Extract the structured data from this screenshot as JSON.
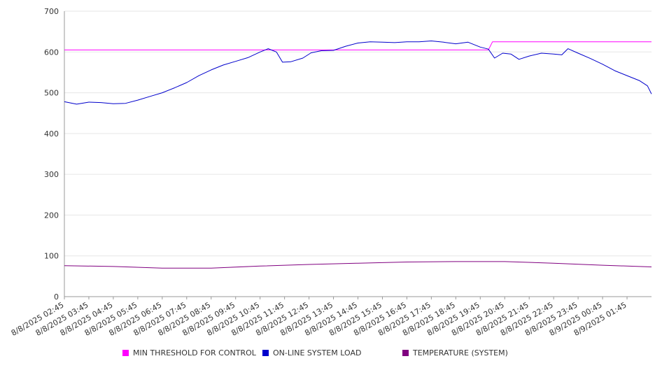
{
  "chart_data": {
    "type": "line",
    "title": "",
    "xlabel": "",
    "ylabel": "",
    "ylim": [
      0,
      700
    ],
    "yticks": [
      0,
      100,
      200,
      300,
      400,
      500,
      600,
      700
    ],
    "grid": true,
    "legend_position": "bottom",
    "x_tick_labels": [
      "8/8/2025 02:45",
      "8/8/2025 03:45",
      "8/8/2025 04:45",
      "8/8/2025 05:45",
      "8/8/2025 06:45",
      "8/8/2025 07:45",
      "8/8/2025 08:45",
      "8/8/2025 09:45",
      "8/8/2025 10:45",
      "8/8/2025 11:45",
      "8/8/2025 12:45",
      "8/8/2025 13:45",
      "8/8/2025 14:45",
      "8/8/2025 15:45",
      "8/8/2025 16:45",
      "8/8/2025 17:45",
      "8/8/2025 18:45",
      "8/8/2025 19:45",
      "8/8/2025 20:45",
      "8/8/2025 21:45",
      "8/8/2025 22:45",
      "8/8/2025 23:45",
      "8/9/2025 00:45",
      "8/9/2025 01:45"
    ],
    "x_range": [
      "8/8/2025 02:45",
      "8/9/2025 02:45"
    ],
    "series": [
      {
        "name": "MIN THRESHOLD FOR CONTROL",
        "color": "#ff00ff",
        "points": [
          [
            "8/8/2025 02:45",
            605
          ],
          [
            "8/8/2025 20:05",
            605
          ],
          [
            "8/8/2025 20:15",
            625
          ],
          [
            "8/9/2025 02:45",
            625
          ]
        ]
      },
      {
        "name": "ON-LINE SYSTEM LOAD",
        "color": "#0000cc",
        "points": [
          [
            "8/8/2025 02:45",
            478
          ],
          [
            "8/8/2025 03:15",
            472
          ],
          [
            "8/8/2025 03:45",
            477
          ],
          [
            "8/8/2025 04:15",
            476
          ],
          [
            "8/8/2025 04:45",
            473
          ],
          [
            "8/8/2025 05:15",
            474
          ],
          [
            "8/8/2025 05:45",
            482
          ],
          [
            "8/8/2025 06:15",
            491
          ],
          [
            "8/8/2025 06:45",
            500
          ],
          [
            "8/8/2025 07:15",
            512
          ],
          [
            "8/8/2025 07:45",
            525
          ],
          [
            "8/8/2025 08:15",
            542
          ],
          [
            "8/8/2025 08:45",
            556
          ],
          [
            "8/8/2025 09:15",
            568
          ],
          [
            "8/8/2025 09:45",
            577
          ],
          [
            "8/8/2025 10:15",
            586
          ],
          [
            "8/8/2025 10:45",
            600
          ],
          [
            "8/8/2025 11:05",
            608
          ],
          [
            "8/8/2025 11:25",
            600
          ],
          [
            "8/8/2025 11:40",
            575
          ],
          [
            "8/8/2025 12:00",
            576
          ],
          [
            "8/8/2025 12:30",
            585
          ],
          [
            "8/8/2025 12:50",
            598
          ],
          [
            "8/8/2025 13:15",
            603
          ],
          [
            "8/8/2025 13:45",
            604
          ],
          [
            "8/8/2025 14:15",
            614
          ],
          [
            "8/8/2025 14:45",
            622
          ],
          [
            "8/8/2025 15:15",
            625
          ],
          [
            "8/8/2025 15:45",
            624
          ],
          [
            "8/8/2025 16:15",
            623
          ],
          [
            "8/8/2025 16:45",
            625
          ],
          [
            "8/8/2025 17:15",
            625
          ],
          [
            "8/8/2025 17:45",
            627
          ],
          [
            "8/8/2025 18:15",
            624
          ],
          [
            "8/8/2025 18:45",
            620
          ],
          [
            "8/8/2025 19:15",
            624
          ],
          [
            "8/8/2025 19:45",
            612
          ],
          [
            "8/8/2025 20:05",
            607
          ],
          [
            "8/8/2025 20:20",
            585
          ],
          [
            "8/8/2025 20:40",
            597
          ],
          [
            "8/8/2025 21:00",
            595
          ],
          [
            "8/8/2025 21:20",
            582
          ],
          [
            "8/8/2025 21:45",
            590
          ],
          [
            "8/8/2025 22:15",
            597
          ],
          [
            "8/8/2025 22:45",
            595
          ],
          [
            "8/8/2025 23:05",
            593
          ],
          [
            "8/8/2025 23:20",
            608
          ],
          [
            "8/8/2025 23:45",
            597
          ],
          [
            "8/9/2025 00:15",
            584
          ],
          [
            "8/9/2025 00:45",
            570
          ],
          [
            "8/9/2025 01:15",
            554
          ],
          [
            "8/9/2025 01:45",
            542
          ],
          [
            "8/9/2025 02:15",
            530
          ],
          [
            "8/9/2025 02:35",
            517
          ],
          [
            "8/9/2025 02:45",
            497
          ]
        ]
      },
      {
        "name": "TEMPERATURE (SYSTEM)",
        "color": "#800080",
        "points": [
          [
            "8/8/2025 02:45",
            76
          ],
          [
            "8/8/2025 04:45",
            74
          ],
          [
            "8/8/2025 06:45",
            70
          ],
          [
            "8/8/2025 08:45",
            70
          ],
          [
            "8/8/2025 10:45",
            75
          ],
          [
            "8/8/2025 12:45",
            79
          ],
          [
            "8/8/2025 14:45",
            82
          ],
          [
            "8/8/2025 16:45",
            85
          ],
          [
            "8/8/2025 18:45",
            86
          ],
          [
            "8/8/2025 20:45",
            86
          ],
          [
            "8/8/2025 22:45",
            82
          ],
          [
            "8/9/2025 00:45",
            77
          ],
          [
            "8/9/2025 02:45",
            73
          ]
        ]
      }
    ]
  }
}
